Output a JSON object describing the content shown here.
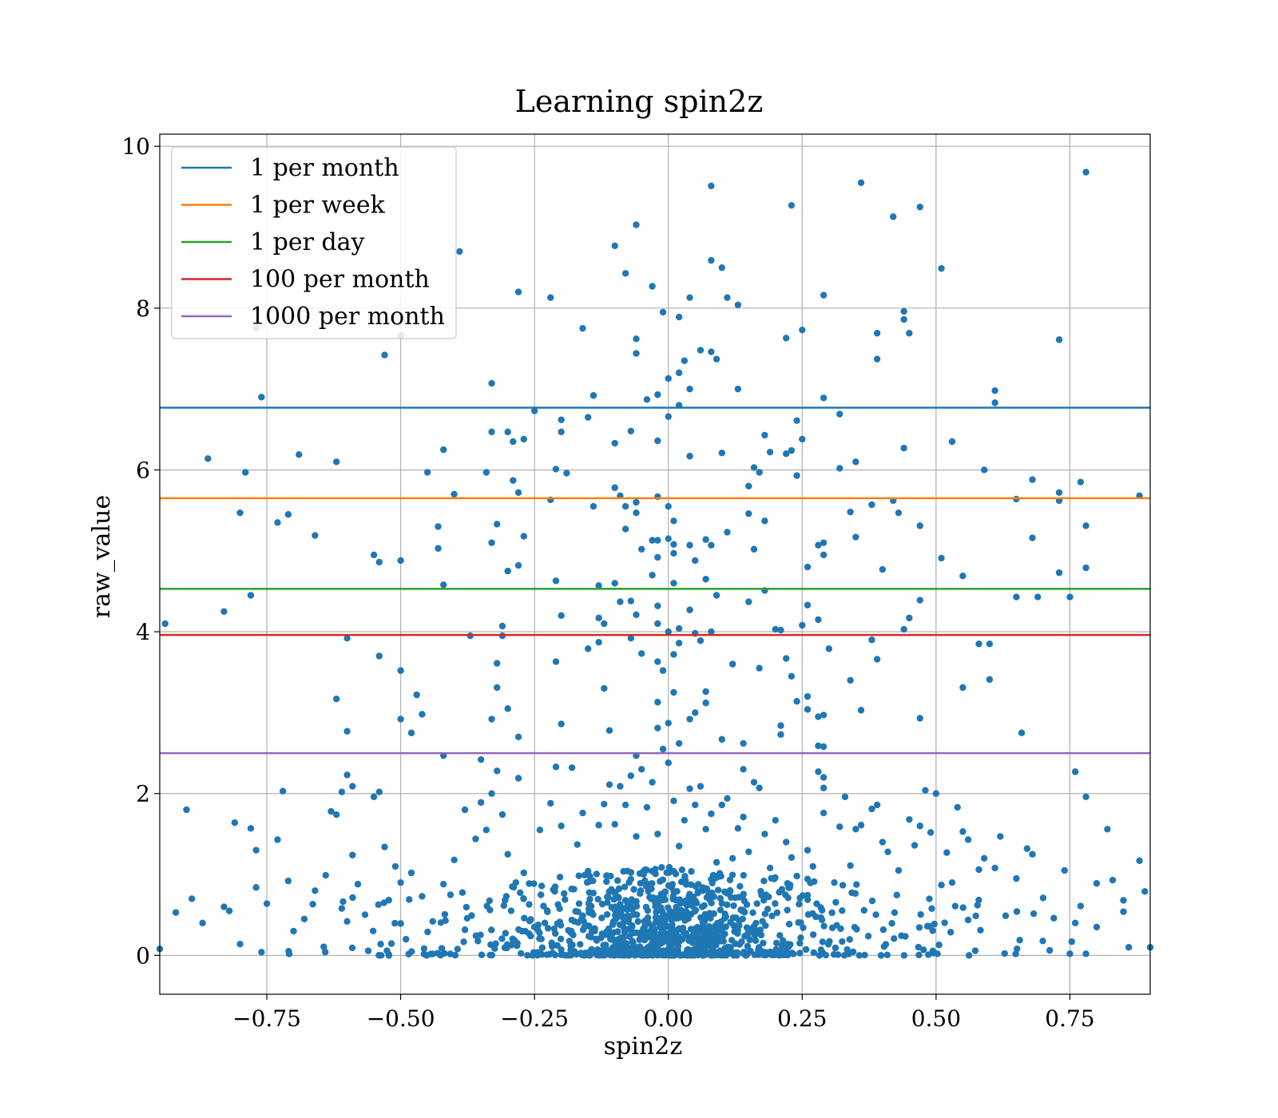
{
  "chart_data": {
    "type": "scatter",
    "title": "Learning spin2z",
    "xlabel": "spin2z",
    "ylabel": "raw_value",
    "xlim": [
      -0.95,
      0.9
    ],
    "ylim": [
      -0.48,
      10.15
    ],
    "xticks": [
      -0.75,
      -0.5,
      -0.25,
      0.0,
      0.25,
      0.5,
      0.75
    ],
    "xtick_labels": [
      "−0.75",
      "−0.50",
      "−0.25",
      "0.00",
      "0.25",
      "0.50",
      "0.75"
    ],
    "yticks": [
      0,
      2,
      4,
      6,
      8,
      10
    ],
    "ytick_labels": [
      "0",
      "2",
      "4",
      "6",
      "8",
      "10"
    ],
    "grid": true,
    "legend_position": "top-left",
    "point_color": "#1f77b4",
    "threshold_lines": [
      {
        "name": "1 per month",
        "y": 6.77,
        "color": "#1f77b4"
      },
      {
        "name": "1 per week",
        "y": 5.65,
        "color": "#ff7f0e"
      },
      {
        "name": "1 per day",
        "y": 4.53,
        "color": "#2ca02c"
      },
      {
        "name": "100 per month",
        "y": 3.96,
        "color": "#d62728"
      },
      {
        "name": "1000 per month",
        "y": 2.5,
        "color": "#9467bd"
      }
    ],
    "points": [
      [
        -0.94,
        4.1
      ],
      [
        -0.86,
        6.14
      ],
      [
        -0.83,
        4.25
      ],
      [
        -0.79,
        5.97
      ],
      [
        -0.8,
        5.47
      ],
      [
        -0.77,
        7.75
      ],
      [
        -0.76,
        6.9
      ],
      [
        -0.78,
        4.45
      ],
      [
        -0.73,
        5.35
      ],
      [
        -0.71,
        5.45
      ],
      [
        -0.69,
        6.19
      ],
      [
        -0.66,
        5.19
      ],
      [
        -0.62,
        6.1
      ],
      [
        -0.6,
        3.92
      ],
      [
        -0.62,
        3.17
      ],
      [
        -0.6,
        2.77
      ],
      [
        -0.6,
        2.23
      ],
      [
        -0.59,
        2.09
      ],
      [
        -0.61,
        2.02
      ],
      [
        -0.55,
        4.95
      ],
      [
        -0.54,
        4.86
      ],
      [
        -0.53,
        7.42
      ],
      [
        -0.54,
        3.7
      ],
      [
        -0.5,
        4.88
      ],
      [
        -0.5,
        3.52
      ],
      [
        -0.5,
        2.92
      ],
      [
        -0.5,
        7.66
      ],
      [
        -0.47,
        3.22
      ],
      [
        -0.46,
        2.98
      ],
      [
        -0.48,
        2.75
      ],
      [
        -0.45,
        5.97
      ],
      [
        -0.43,
        5.3
      ],
      [
        -0.42,
        6.25
      ],
      [
        -0.43,
        5.03
      ],
      [
        -0.42,
        4.58
      ],
      [
        -0.42,
        2.47
      ],
      [
        -0.39,
        8.7
      ],
      [
        -0.4,
        5.7
      ],
      [
        -0.37,
        3.95
      ],
      [
        -0.35,
        2.42
      ],
      [
        -0.33,
        7.07
      ],
      [
        -0.33,
        6.47
      ],
      [
        -0.34,
        5.97
      ],
      [
        -0.33,
        5.1
      ],
      [
        -0.32,
        5.33
      ],
      [
        -0.31,
        4.07
      ],
      [
        -0.32,
        3.61
      ],
      [
        -0.32,
        3.31
      ],
      [
        -0.33,
        2.92
      ],
      [
        -0.3,
        6.47
      ],
      [
        -0.28,
        8.2
      ],
      [
        -0.29,
        6.35
      ],
      [
        -0.27,
        6.38
      ],
      [
        -0.29,
        5.87
      ],
      [
        -0.28,
        5.72
      ],
      [
        -0.27,
        5.18
      ],
      [
        -0.28,
        4.82
      ],
      [
        -0.3,
        4.75
      ],
      [
        -0.31,
        3.95
      ],
      [
        -0.3,
        3.05
      ],
      [
        -0.28,
        2.7
      ],
      [
        -0.25,
        6.73
      ],
      [
        -0.22,
        8.13
      ],
      [
        -0.21,
        6.01
      ],
      [
        -0.2,
        6.47
      ],
      [
        -0.2,
        6.62
      ],
      [
        -0.19,
        5.96
      ],
      [
        -0.22,
        5.63
      ],
      [
        -0.21,
        4.63
      ],
      [
        -0.2,
        4.2
      ],
      [
        -0.21,
        3.63
      ],
      [
        -0.2,
        2.86
      ],
      [
        -0.16,
        7.75
      ],
      [
        -0.14,
        6.92
      ],
      [
        -0.15,
        6.65
      ],
      [
        -0.14,
        5.55
      ],
      [
        -0.13,
        4.57
      ],
      [
        -0.13,
        4.17
      ],
      [
        -0.12,
        4.1
      ],
      [
        -0.1,
        4.6
      ],
      [
        -0.15,
        3.79
      ],
      [
        -0.13,
        3.87
      ],
      [
        -0.12,
        3.3
      ],
      [
        -0.11,
        2.78
      ],
      [
        -0.1,
        8.77
      ],
      [
        -0.1,
        6.33
      ],
      [
        -0.1,
        5.78
      ],
      [
        -0.09,
        5.68
      ],
      [
        -0.08,
        8.43
      ],
      [
        -0.07,
        6.48
      ],
      [
        -0.06,
        7.62
      ],
      [
        -0.06,
        7.44
      ],
      [
        -0.08,
        5.55
      ],
      [
        -0.06,
        5.6
      ],
      [
        -0.06,
        5.47
      ],
      [
        -0.05,
        5.02
      ],
      [
        -0.08,
        5.27
      ],
      [
        -0.09,
        4.37
      ],
      [
        -0.07,
        4.38
      ],
      [
        -0.06,
        4.21
      ],
      [
        -0.07,
        3.92
      ],
      [
        -0.05,
        3.73
      ],
      [
        -0.06,
        2.47
      ],
      [
        -0.03,
        8.27
      ],
      [
        -0.06,
        9.03
      ],
      [
        -0.04,
        6.87
      ],
      [
        -0.02,
        6.93
      ],
      [
        -0.02,
        6.36
      ],
      [
        -0.02,
        5.67
      ],
      [
        -0.03,
        5.13
      ],
      [
        -0.02,
        5.13
      ],
      [
        -0.02,
        4.92
      ],
      [
        -0.03,
        4.7
      ],
      [
        -0.02,
        4.32
      ],
      [
        -0.02,
        4.1
      ],
      [
        -0.02,
        3.63
      ],
      [
        -0.01,
        3.52
      ],
      [
        -0.02,
        3.13
      ],
      [
        -0.02,
        2.81
      ],
      [
        -0.01,
        7.95
      ],
      [
        0.0,
        6.66
      ],
      [
        0.0,
        7.13
      ],
      [
        0.02,
        7.2
      ],
      [
        0.0,
        5.55
      ],
      [
        0.01,
        5.37
      ],
      [
        0.0,
        5.15
      ],
      [
        0.01,
        5.08
      ],
      [
        0.01,
        4.97
      ],
      [
        0.01,
        4.6
      ],
      [
        0.0,
        4.0
      ],
      [
        0.02,
        4.04
      ],
      [
        0.01,
        3.72
      ],
      [
        0.02,
        3.86
      ],
      [
        0.01,
        3.25
      ],
      [
        0.0,
        2.87
      ],
      [
        0.02,
        2.62
      ],
      [
        0.0,
        2.38
      ],
      [
        0.02,
        7.89
      ],
      [
        0.02,
        6.8
      ],
      [
        0.04,
        6.17
      ],
      [
        0.04,
        5.07
      ],
      [
        0.05,
        4.88
      ],
      [
        0.04,
        4.27
      ],
      [
        0.05,
        3.98
      ],
      [
        0.06,
        3.89
      ],
      [
        0.05,
        3.0
      ],
      [
        0.04,
        2.92
      ],
      [
        0.03,
        7.35
      ],
      [
        0.04,
        7.0
      ],
      [
        0.04,
        8.13
      ],
      [
        0.06,
        7.48
      ],
      [
        0.08,
        7.46
      ],
      [
        0.09,
        7.37
      ],
      [
        0.08,
        9.51
      ],
      [
        0.08,
        8.59
      ],
      [
        0.1,
        8.5
      ],
      [
        0.07,
        5.14
      ],
      [
        0.07,
        4.65
      ],
      [
        0.08,
        4.0
      ],
      [
        0.07,
        3.26
      ],
      [
        0.07,
        3.12
      ],
      [
        0.09,
        4.45
      ],
      [
        0.08,
        5.07
      ],
      [
        0.1,
        6.21
      ],
      [
        0.11,
        8.13
      ],
      [
        0.13,
        8.04
      ],
      [
        0.13,
        7.0
      ],
      [
        0.11,
        5.23
      ],
      [
        0.12,
        3.6
      ],
      [
        0.1,
        2.67
      ],
      [
        0.14,
        2.62
      ],
      [
        0.14,
        2.3
      ],
      [
        0.15,
        5.8
      ],
      [
        0.15,
        5.46
      ],
      [
        0.15,
        4.37
      ],
      [
        0.16,
        6.03
      ],
      [
        0.17,
        5.97
      ],
      [
        0.16,
        5.02
      ],
      [
        0.18,
        4.51
      ],
      [
        0.18,
        5.37
      ],
      [
        0.17,
        3.55
      ],
      [
        0.18,
        6.43
      ],
      [
        0.19,
        6.22
      ],
      [
        0.2,
        4.03
      ],
      [
        0.21,
        4.02
      ],
      [
        0.21,
        2.84
      ],
      [
        0.21,
        2.73
      ],
      [
        0.22,
        7.63
      ],
      [
        0.23,
        9.27
      ],
      [
        0.22,
        6.2
      ],
      [
        0.23,
        6.24
      ],
      [
        0.24,
        5.93
      ],
      [
        0.24,
        6.61
      ],
      [
        0.25,
        6.38
      ],
      [
        0.25,
        7.73
      ],
      [
        0.26,
        4.8
      ],
      [
        0.26,
        4.33
      ],
      [
        0.25,
        4.08
      ],
      [
        0.22,
        3.67
      ],
      [
        0.23,
        3.45
      ],
      [
        0.24,
        3.14
      ],
      [
        0.26,
        3.2
      ],
      [
        0.26,
        3.04
      ],
      [
        0.28,
        5.07
      ],
      [
        0.28,
        4.15
      ],
      [
        0.28,
        2.95
      ],
      [
        0.28,
        2.59
      ],
      [
        0.29,
        8.16
      ],
      [
        0.29,
        6.89
      ],
      [
        0.29,
        5.1
      ],
      [
        0.29,
        4.95
      ],
      [
        0.3,
        3.79
      ],
      [
        0.29,
        2.97
      ],
      [
        0.29,
        2.58
      ],
      [
        0.32,
        6.02
      ],
      [
        0.32,
        6.69
      ],
      [
        0.34,
        5.48
      ],
      [
        0.34,
        3.4
      ],
      [
        0.35,
        6.1
      ],
      [
        0.35,
        5.17
      ],
      [
        0.36,
        9.55
      ],
      [
        0.36,
        3.03
      ],
      [
        0.38,
        5.57
      ],
      [
        0.39,
        7.37
      ],
      [
        0.39,
        7.69
      ],
      [
        0.4,
        4.77
      ],
      [
        0.39,
        3.66
      ],
      [
        0.38,
        3.9
      ],
      [
        0.42,
        9.13
      ],
      [
        0.42,
        5.62
      ],
      [
        0.43,
        5.47
      ],
      [
        0.44,
        7.96
      ],
      [
        0.44,
        7.86
      ],
      [
        0.44,
        6.27
      ],
      [
        0.45,
        7.69
      ],
      [
        0.47,
        9.25
      ],
      [
        0.47,
        5.31
      ],
      [
        0.47,
        4.39
      ],
      [
        0.45,
        4.17
      ],
      [
        0.44,
        4.03
      ],
      [
        0.47,
        2.93
      ],
      [
        0.51,
        8.49
      ],
      [
        0.53,
        6.35
      ],
      [
        0.51,
        4.91
      ],
      [
        0.55,
        4.69
      ],
      [
        0.55,
        3.31
      ],
      [
        0.59,
        6.0
      ],
      [
        0.58,
        3.85
      ],
      [
        0.6,
        3.85
      ],
      [
        0.6,
        3.41
      ],
      [
        0.61,
        6.83
      ],
      [
        0.61,
        6.98
      ],
      [
        0.65,
        5.64
      ],
      [
        0.65,
        4.43
      ],
      [
        0.66,
        2.75
      ],
      [
        0.68,
        5.88
      ],
      [
        0.68,
        5.16
      ],
      [
        0.69,
        4.43
      ],
      [
        0.73,
        7.61
      ],
      [
        0.73,
        5.72
      ],
      [
        0.73,
        5.62
      ],
      [
        0.73,
        4.73
      ],
      [
        0.75,
        4.43
      ],
      [
        0.77,
        5.85
      ],
      [
        0.78,
        5.31
      ],
      [
        0.78,
        4.79
      ],
      [
        0.76,
        2.27
      ],
      [
        0.78,
        1.96
      ],
      [
        0.78,
        9.68
      ],
      [
        0.88,
        5.68
      ],
      [
        -0.95,
        0.08
      ],
      [
        -0.92,
        0.53
      ],
      [
        -0.9,
        1.8
      ],
      [
        -0.89,
        0.7
      ],
      [
        -0.87,
        0.4
      ],
      [
        -0.83,
        0.6
      ],
      [
        -0.82,
        0.55
      ],
      [
        -0.81,
        1.64
      ],
      [
        -0.8,
        0.14
      ],
      [
        -0.78,
        1.57
      ],
      [
        -0.77,
        1.3
      ],
      [
        -0.77,
        0.84
      ],
      [
        -0.76,
        0.04
      ],
      [
        -0.75,
        0.64
      ],
      [
        -0.73,
        1.43
      ],
      [
        -0.72,
        2.03
      ],
      [
        -0.71,
        0.92
      ],
      [
        -0.7,
        0.3
      ],
      [
        -0.68,
        0.45
      ],
      [
        -0.66,
        0.8
      ],
      [
        -0.64,
        0.99
      ],
      [
        -0.63,
        1.78
      ],
      [
        -0.62,
        1.74
      ],
      [
        -0.61,
        0.58
      ],
      [
        -0.6,
        0.42
      ],
      [
        -0.59,
        1.24
      ],
      [
        -0.58,
        0.88
      ],
      [
        -0.55,
        1.96
      ],
      [
        -0.54,
        2.02
      ],
      [
        -0.53,
        1.34
      ],
      [
        -0.51,
        1.1
      ],
      [
        -0.5,
        0.9
      ],
      [
        -0.49,
        0.2
      ],
      [
        -0.48,
        1.02
      ],
      [
        -0.46,
        0.73
      ],
      [
        -0.44,
        0.42
      ],
      [
        -0.42,
        0.88
      ],
      [
        -0.4,
        1.18
      ],
      [
        -0.38,
        1.8
      ],
      [
        -0.36,
        1.44
      ],
      [
        -0.35,
        1.89
      ],
      [
        -0.34,
        1.55
      ],
      [
        -0.33,
        2.0
      ],
      [
        -0.32,
        2.28
      ],
      [
        -0.31,
        1.74
      ],
      [
        -0.3,
        1.25
      ],
      [
        -0.28,
        2.19
      ],
      [
        -0.27,
        1.02
      ],
      [
        -0.26,
        0.63
      ],
      [
        -0.24,
        1.55
      ],
      [
        -0.22,
        1.88
      ],
      [
        -0.21,
        2.33
      ],
      [
        -0.2,
        1.6
      ],
      [
        -0.18,
        2.32
      ],
      [
        -0.17,
        1.37
      ],
      [
        -0.16,
        1.76
      ],
      [
        -0.15,
        1.04
      ],
      [
        -0.14,
        0.77
      ],
      [
        -0.13,
        1.61
      ],
      [
        -0.12,
        1.87
      ],
      [
        -0.11,
        2.11
      ],
      [
        -0.1,
        1.62
      ],
      [
        -0.09,
        2.09
      ],
      [
        -0.08,
        1.86
      ],
      [
        -0.07,
        2.22
      ],
      [
        -0.06,
        1.47
      ],
      [
        -0.05,
        2.3
      ],
      [
        -0.04,
        1.83
      ],
      [
        -0.03,
        2.14
      ],
      [
        -0.02,
        1.5
      ],
      [
        -0.01,
        2.55
      ],
      [
        0.01,
        1.91
      ],
      [
        0.02,
        1.35
      ],
      [
        0.03,
        1.67
      ],
      [
        0.04,
        2.06
      ],
      [
        0.05,
        1.86
      ],
      [
        0.06,
        2.09
      ],
      [
        0.07,
        1.56
      ],
      [
        0.08,
        1.75
      ],
      [
        0.09,
        1.15
      ],
      [
        0.1,
        1.86
      ],
      [
        0.11,
        1.94
      ],
      [
        0.12,
        1.2
      ],
      [
        0.13,
        1.57
      ],
      [
        0.14,
        1.71
      ],
      [
        0.15,
        1.28
      ],
      [
        0.16,
        2.14
      ],
      [
        0.17,
        2.07
      ],
      [
        0.18,
        1.5
      ],
      [
        0.19,
        1.08
      ],
      [
        0.2,
        1.67
      ],
      [
        0.22,
        1.4
      ],
      [
        0.23,
        1.21
      ],
      [
        0.24,
        0.98
      ],
      [
        0.26,
        1.3
      ],
      [
        0.27,
        1.1
      ],
      [
        0.28,
        2.27
      ],
      [
        0.29,
        2.2
      ],
      [
        0.29,
        2.07
      ],
      [
        0.29,
        1.76
      ],
      [
        0.31,
        0.9
      ],
      [
        0.32,
        1.59
      ],
      [
        0.33,
        1.96
      ],
      [
        0.34,
        1.11
      ],
      [
        0.35,
        1.56
      ],
      [
        0.36,
        1.61
      ],
      [
        0.38,
        1.81
      ],
      [
        0.39,
        1.86
      ],
      [
        0.4,
        1.4
      ],
      [
        0.41,
        1.28
      ],
      [
        0.43,
        1.05
      ],
      [
        0.45,
        1.68
      ],
      [
        0.46,
        1.36
      ],
      [
        0.47,
        1.6
      ],
      [
        0.48,
        2.04
      ],
      [
        0.49,
        1.52
      ],
      [
        0.5,
        2.0
      ],
      [
        0.51,
        0.87
      ],
      [
        0.52,
        1.27
      ],
      [
        0.53,
        0.9
      ],
      [
        0.54,
        1.83
      ],
      [
        0.55,
        1.53
      ],
      [
        0.56,
        1.43
      ],
      [
        0.58,
        1.06
      ],
      [
        0.59,
        1.2
      ],
      [
        0.61,
        1.08
      ],
      [
        0.62,
        1.47
      ],
      [
        0.63,
        0.49
      ],
      [
        0.65,
        0.95
      ],
      [
        0.67,
        1.32
      ],
      [
        0.68,
        1.25
      ],
      [
        0.7,
        0.71
      ],
      [
        0.72,
        0.46
      ],
      [
        0.74,
        1.05
      ],
      [
        0.75,
        0.02
      ],
      [
        0.76,
        0.4
      ],
      [
        0.77,
        0.61
      ],
      [
        0.78,
        0.02
      ],
      [
        0.8,
        0.89
      ],
      [
        0.8,
        0.35
      ],
      [
        0.82,
        1.56
      ],
      [
        0.83,
        0.93
      ],
      [
        0.85,
        0.54
      ],
      [
        0.85,
        0.68
      ],
      [
        0.86,
        0.1
      ],
      [
        0.88,
        1.17
      ],
      [
        0.89,
        0.79
      ],
      [
        0.9,
        0.1
      ]
    ]
  }
}
